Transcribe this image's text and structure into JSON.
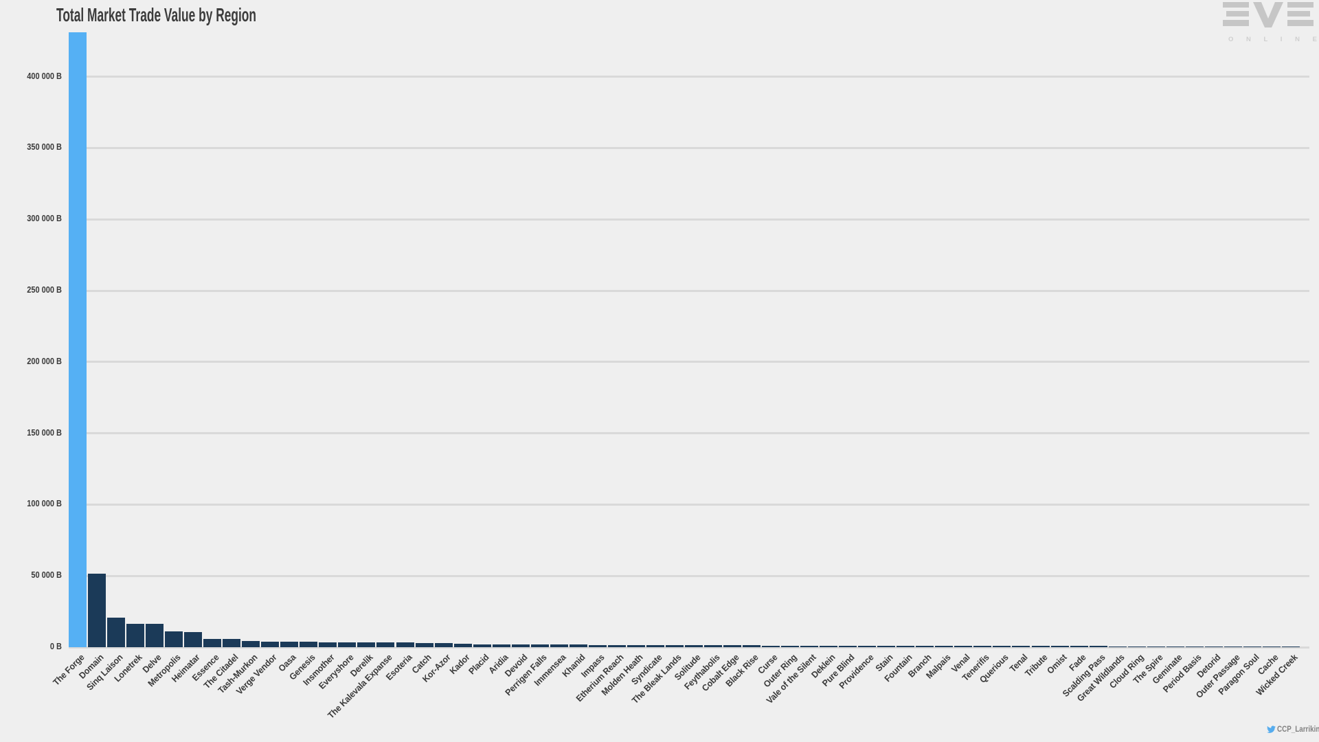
{
  "title": "Total Market Trade Value by Region",
  "logo": {
    "brand": "EVE",
    "subtitle": "O N L I N E"
  },
  "attribution": {
    "handle": "CCP_Larrikin",
    "icon": "twitter-bird-icon"
  },
  "colors": {
    "background": "#efefef",
    "gridline": "#d9d9d9",
    "text": "#3a3a3a",
    "highlight_bar": "#55b0f4",
    "bar": "#1b3a58",
    "logo_gray": "#c6c6c6",
    "twitter_blue": "#55acee",
    "attribution_text": "#828282"
  },
  "chart_data": {
    "type": "bar",
    "title": "Total Market Trade Value by Region",
    "xlabel": "",
    "ylabel": "",
    "unit": "B",
    "ylim": [
      0,
      432000
    ],
    "ytick_step": 50000,
    "ytick_labels": [
      "0 B",
      "50 000 B",
      "100 000 B",
      "150 000 B",
      "200 000 B",
      "250 000 B",
      "300 000 B",
      "350 000 B",
      "400 000 B"
    ],
    "grid": true,
    "legend": false,
    "highlight_category": "The Forge",
    "categories": [
      "The Forge",
      "Domain",
      "Sinq Laison",
      "Lonetrek",
      "Delve",
      "Metropolis",
      "Heimatar",
      "Essence",
      "The Citadel",
      "Tash-Murkon",
      "Verge Vendor",
      "Oasa",
      "Genesis",
      "Insmother",
      "Everyshore",
      "Derelik",
      "The Kalevala Expanse",
      "Esoteria",
      "Catch",
      "Kor-Azor",
      "Kador",
      "Placid",
      "Aridia",
      "Devoid",
      "Perrigen Falls",
      "Immensea",
      "Khanid",
      "Impass",
      "Etherium Reach",
      "Molden Heath",
      "Syndicate",
      "The Bleak Lands",
      "Solitude",
      "Feythabolis",
      "Cobalt Edge",
      "Black Rise",
      "Curse",
      "Outer Ring",
      "Vale of the Silent",
      "Deklein",
      "Pure Blind",
      "Providence",
      "Stain",
      "Fountain",
      "Branch",
      "Malpais",
      "Venal",
      "Tenerifis",
      "Querious",
      "Tenal",
      "Tribute",
      "Omist",
      "Fade",
      "Scalding Pass",
      "Great Wildlands",
      "Cloud Ring",
      "The Spire",
      "Geminate",
      "Period Basis",
      "Detorid",
      "Outer Passage",
      "Paragon Soul",
      "Cache",
      "Wicked Creek"
    ],
    "values": [
      431000,
      51500,
      20700,
      16300,
      16500,
      11100,
      10600,
      5900,
      5800,
      4200,
      3800,
      3700,
      3800,
      3600,
      3500,
      3400,
      3400,
      3200,
      3100,
      3000,
      2200,
      2150,
      2100,
      2000,
      1950,
      1900,
      1700,
      1600,
      1550,
      1450,
      1400,
      1350,
      1300,
      1280,
      1250,
      1220,
      1200,
      1150,
      1100,
      1080,
      1050,
      1020,
      1000,
      980,
      950,
      930,
      900,
      880,
      860,
      840,
      820,
      800,
      780,
      760,
      600,
      580,
      560,
      540,
      520,
      500,
      480,
      460,
      440,
      420
    ]
  }
}
